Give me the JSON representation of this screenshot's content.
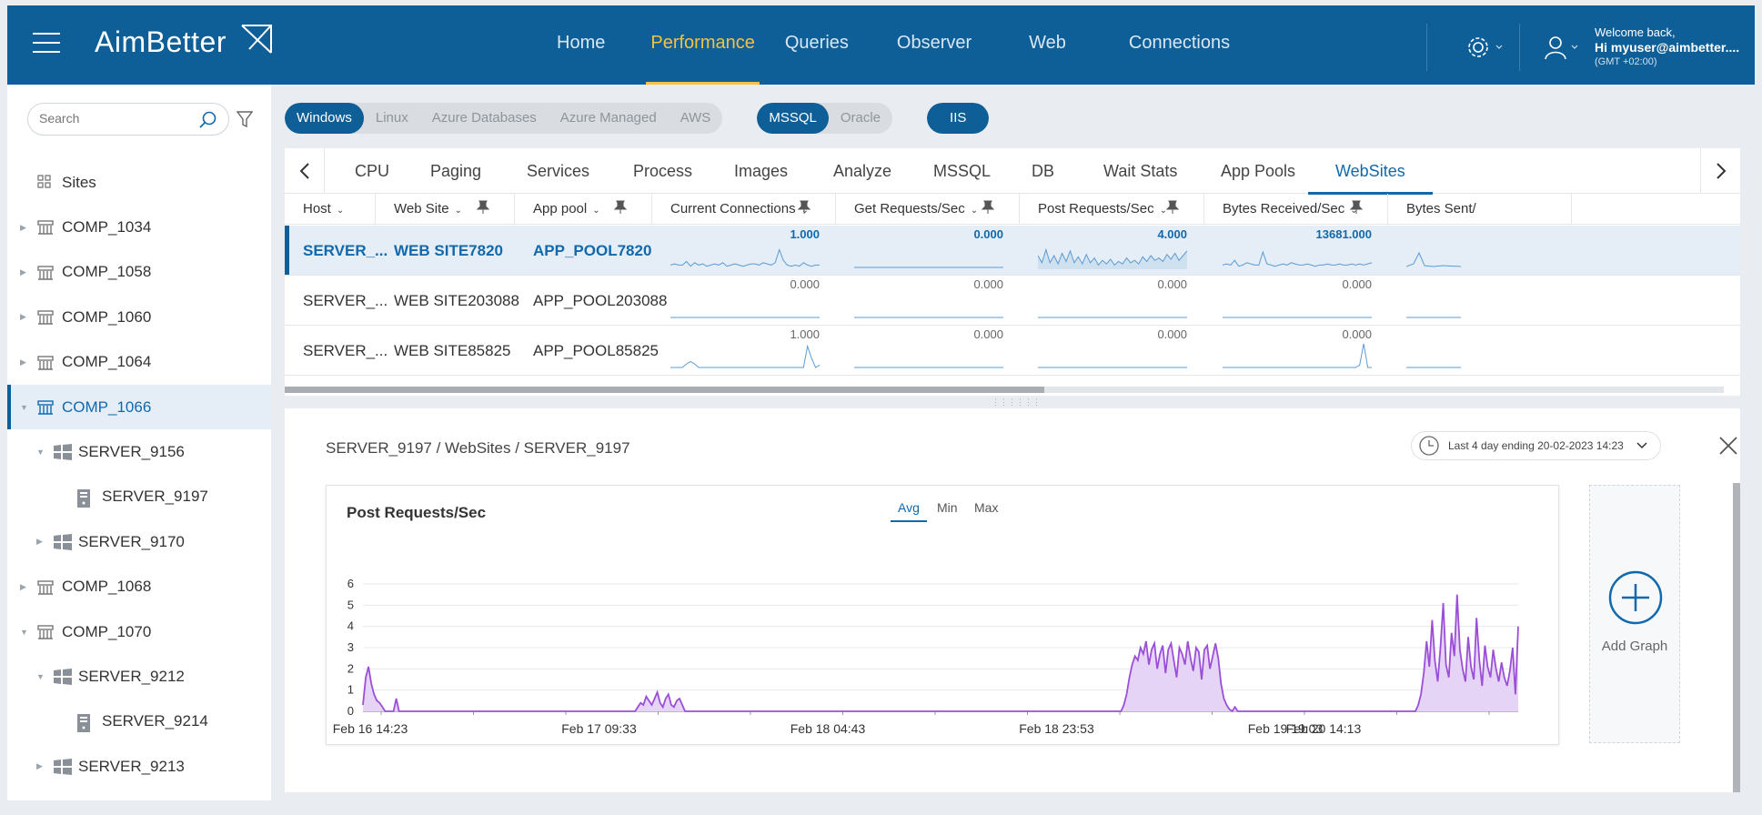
{
  "header": {
    "logo": "AimBetter",
    "nav": [
      "Home",
      "Performance",
      "Queries",
      "Observer",
      "Web",
      "Connections"
    ],
    "active_nav": "Performance",
    "welcome": "Welcome back,",
    "user": "Hi myuser@aimbetter....",
    "timezone": "(GMT +02:00)"
  },
  "sidebar": {
    "search_placeholder": "Search",
    "items": [
      {
        "label": "Sites",
        "type": "sites",
        "level": 0,
        "arrow": ""
      },
      {
        "label": "COMP_1034",
        "type": "comp",
        "level": 0,
        "arrow": "right"
      },
      {
        "label": "COMP_1058",
        "type": "comp",
        "level": 0,
        "arrow": "right"
      },
      {
        "label": "COMP_1060",
        "type": "comp",
        "level": 0,
        "arrow": "right"
      },
      {
        "label": "COMP_1064",
        "type": "comp",
        "level": 0,
        "arrow": "right"
      },
      {
        "label": "COMP_1066",
        "type": "comp",
        "level": 0,
        "arrow": "down",
        "selected": true
      },
      {
        "label": "SERVER_9156",
        "type": "windows",
        "level": 1,
        "arrow": "down"
      },
      {
        "label": "SERVER_9197",
        "type": "server",
        "level": 2,
        "arrow": ""
      },
      {
        "label": "SERVER_9170",
        "type": "windows",
        "level": 1,
        "arrow": "right"
      },
      {
        "label": "COMP_1068",
        "type": "comp",
        "level": 0,
        "arrow": "right"
      },
      {
        "label": "COMP_1070",
        "type": "comp",
        "level": 0,
        "arrow": "down"
      },
      {
        "label": "SERVER_9212",
        "type": "windows",
        "level": 1,
        "arrow": "down"
      },
      {
        "label": "SERVER_9214",
        "type": "server",
        "level": 2,
        "arrow": ""
      },
      {
        "label": "SERVER_9213",
        "type": "windows",
        "level": 1,
        "arrow": "right"
      }
    ]
  },
  "filters": {
    "os": [
      "Windows",
      "Linux",
      "Azure Databases",
      "Azure Managed",
      "AWS"
    ],
    "os_active": "Windows",
    "db": [
      "MSSQL",
      "Oracle"
    ],
    "db_active": "MSSQL",
    "web": [
      "IIS"
    ],
    "web_active": "IIS"
  },
  "tabs": [
    "CPU",
    "Paging",
    "Services",
    "Process",
    "Images",
    "Analyze",
    "MSSQL",
    "DB",
    "Wait Stats",
    "App Pools",
    "WebSites"
  ],
  "active_tab": "WebSites",
  "table": {
    "columns": [
      "Host",
      "Web Site",
      "App pool",
      "Current Connections",
      "Get Requests/Sec",
      "Post Requests/Sec",
      "Bytes Received/Sec",
      "Bytes Sent/"
    ],
    "rows": [
      {
        "host": "SERVER_...",
        "site": "WEB SITE7820",
        "pool": "APP_POOL7820",
        "values": [
          "1.000",
          "0.000",
          "4.000",
          "13681.000"
        ],
        "selected": true
      },
      {
        "host": "SERVER_...",
        "site": "WEB SITE203088",
        "pool": "APP_POOL203088",
        "values": [
          "0.000",
          "0.000",
          "0.000",
          "0.000"
        ]
      },
      {
        "host": "SERVER_...",
        "site": "WEB SITE85825",
        "pool": "APP_POOL85825",
        "values": [
          "1.000",
          "0.000",
          "0.000",
          "0.000"
        ]
      }
    ]
  },
  "detail": {
    "breadcrumb": "SERVER_9197 / WebSites / SERVER_9197",
    "time_range": "Last 4 day ending  20-02-2023 14:23",
    "add_graph": "Add Graph",
    "aggregations": [
      "Avg",
      "Min",
      "Max"
    ],
    "active_agg": "Avg"
  },
  "chart_data": {
    "type": "area",
    "title": "Post Requests/Sec",
    "xlabel": "",
    "ylabel": "",
    "ylim": [
      0,
      6
    ],
    "yticks": [
      0,
      1,
      2,
      3,
      4,
      5,
      6
    ],
    "x_tick_labels": [
      "Feb 16 14:23",
      "Feb 17 09:33",
      "Feb 18 04:43",
      "Feb 18 23:53",
      "Feb 19 19:03",
      "Feb 20 14:13"
    ],
    "series": [
      {
        "color": "#9b4fd6",
        "values": [
          0.3,
          1.6,
          2.1,
          1.3,
          0.8,
          0.5,
          0.4,
          0.2,
          0,
          0,
          0,
          0,
          0.6,
          0,
          0,
          0,
          0,
          0,
          0,
          0,
          0,
          0,
          0,
          0,
          0,
          0,
          0,
          0,
          0,
          0,
          0,
          0,
          0,
          0,
          0,
          0,
          0,
          0,
          0,
          0,
          0,
          0,
          0,
          0,
          0,
          0,
          0,
          0,
          0,
          0,
          0,
          0,
          0,
          0,
          0,
          0,
          0,
          0,
          0,
          0,
          0,
          0,
          0,
          0,
          0,
          0,
          0,
          0,
          0,
          0,
          0,
          0,
          0,
          0,
          0,
          0,
          0,
          0,
          0,
          0,
          0,
          0,
          0,
          0,
          0,
          0,
          0,
          0,
          0,
          0,
          0,
          0,
          0,
          0,
          0,
          0,
          0,
          0,
          0,
          0.2,
          0.4,
          0.3,
          0.7,
          0.5,
          0.3,
          0.6,
          0.9,
          0.4,
          0.2,
          0.6,
          0.8,
          0.3,
          0.2,
          0.5,
          0.6,
          0.3,
          0,
          0,
          0,
          0,
          0,
          0,
          0,
          0,
          0,
          0,
          0,
          0,
          0,
          0,
          0,
          0,
          0,
          0,
          0,
          0,
          0,
          0,
          0,
          0,
          0,
          0,
          0,
          0,
          0,
          0,
          0,
          0,
          0,
          0,
          0,
          0,
          0,
          0,
          0,
          0,
          0,
          0,
          0,
          0,
          0,
          0,
          0,
          0,
          0,
          0,
          0,
          0,
          0,
          0,
          0,
          0,
          0,
          0,
          0,
          0,
          0,
          0,
          0,
          0,
          0,
          0,
          0,
          0,
          0,
          0,
          0,
          0,
          0,
          0,
          0,
          0,
          0,
          0,
          0,
          0,
          0,
          0,
          0,
          0,
          0,
          0,
          0,
          0,
          0,
          0,
          0,
          0,
          0,
          0,
          0,
          0,
          0,
          0,
          0,
          0,
          0,
          0,
          0,
          0,
          0,
          0,
          0,
          0,
          0,
          0,
          0,
          0,
          0,
          0,
          0,
          0,
          0,
          0,
          0,
          0,
          0,
          0,
          0,
          0,
          0,
          0,
          0,
          0,
          0,
          0,
          0,
          0,
          0,
          0,
          0,
          0,
          0,
          0,
          0,
          0,
          0,
          0,
          0,
          0,
          0,
          0,
          0,
          0,
          0,
          0,
          0,
          0,
          0,
          0,
          0,
          0,
          0,
          0,
          0.3,
          0.8,
          1.6,
          2.2,
          2.6,
          2.4,
          3.0,
          2.7,
          3.3,
          2.2,
          2.9,
          3.2,
          2.0,
          2.7,
          3.1,
          1.8,
          2.9,
          3.2,
          2.4,
          1.6,
          3.0,
          2.7,
          2.2,
          3.3,
          2.5,
          1.9,
          3.0,
          2.8,
          1.5,
          2.9,
          3.1,
          2.0,
          2.6,
          3.2,
          2.5,
          1.3,
          0.6,
          0.3,
          0.1,
          0,
          0.2,
          0,
          0,
          0,
          0,
          0,
          0,
          0,
          0,
          0,
          0,
          0,
          0,
          0,
          0,
          0,
          0,
          0,
          0,
          0,
          0,
          0,
          0,
          0,
          0,
          0,
          0,
          0,
          0,
          0,
          0,
          0,
          0,
          0,
          0,
          0,
          0,
          0,
          0,
          0,
          0,
          0,
          0,
          0,
          0,
          0,
          0,
          0,
          0,
          0,
          0,
          0,
          0,
          0,
          0,
          0,
          0,
          0,
          0,
          0,
          0,
          0,
          0,
          0,
          0,
          0,
          0.3,
          0.8,
          1.8,
          3.3,
          2.1,
          4.3,
          2.4,
          1.4,
          3.0,
          5.1,
          2.2,
          1.6,
          3.7,
          2.6,
          5.5,
          2.9,
          2.0,
          1.4,
          3.5,
          2.1,
          1.5,
          4.4,
          2.4,
          1.2,
          3.1,
          2.1,
          1.6,
          2.9,
          2.0,
          1.4,
          2.3,
          1.6,
          1.2,
          1.9,
          3.0,
          0.8,
          4.0
        ]
      }
    ]
  }
}
